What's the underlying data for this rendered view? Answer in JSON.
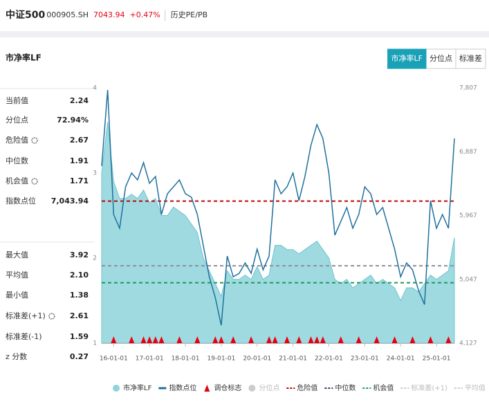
{
  "header": {
    "name": "中证500",
    "code": "000905.SH",
    "price": "7043.94",
    "change": "+0.47%",
    "tab": "历史PE/PB"
  },
  "panel": {
    "title": "市净率LF",
    "buttons": [
      "市净率LF",
      "分位点",
      "标准差"
    ]
  },
  "stats": [
    [
      "当前值",
      "2.24"
    ],
    [
      "分位点",
      "72.94%"
    ],
    [
      "危险值",
      "2.67"
    ],
    [
      "中位数",
      "1.91"
    ],
    [
      "机会值",
      "1.71"
    ],
    [
      "指数点位",
      "7,043.94"
    ],
    [
      "最大值",
      "3.92"
    ],
    [
      "平均值",
      "2.10"
    ],
    [
      "最小值",
      "1.38"
    ],
    [
      "标准差(+1)",
      "2.61"
    ],
    [
      "标准差(-1)",
      "1.59"
    ],
    [
      "z 分数",
      "0.27"
    ]
  ],
  "chart_data": {
    "type": "area-line",
    "categories": [
      null,
      null,
      "16-01-01",
      null,
      null,
      null,
      null,
      null,
      "17-01-01",
      null,
      null,
      null,
      null,
      null,
      "18-01-01",
      null,
      null,
      null,
      null,
      null,
      "19-01-01",
      null,
      null,
      null,
      null,
      null,
      "20-01-01",
      null,
      null,
      null,
      null,
      null,
      "21-01-01",
      null,
      null,
      null,
      null,
      null,
      "22-01-01",
      null,
      null,
      null,
      null,
      null,
      "23-01-01",
      null,
      null,
      null,
      null,
      null,
      "24-01-01",
      null,
      null,
      null,
      null,
      null,
      "25-01-01",
      null,
      null,
      null
    ],
    "series": [
      {
        "name": "市净率LF",
        "color": "#8fd3dc",
        "values": [
          3.0,
          3.6,
          2.9,
          2.7,
          2.7,
          2.75,
          2.7,
          2.8,
          2.65,
          2.7,
          2.5,
          2.5,
          2.6,
          2.55,
          2.5,
          2.4,
          2.3,
          2.0,
          1.85,
          1.7,
          1.55,
          1.85,
          1.75,
          1.75,
          1.8,
          1.75,
          1.9,
          1.75,
          1.8,
          2.15,
          2.15,
          2.1,
          2.1,
          2.05,
          2.1,
          2.15,
          2.2,
          2.1,
          2.0,
          1.75,
          1.7,
          1.75,
          1.65,
          1.7,
          1.75,
          1.8,
          1.7,
          1.75,
          1.7,
          1.65,
          1.5,
          1.65,
          1.65,
          1.6,
          1.7,
          1.8,
          1.75,
          1.8,
          1.85,
          2.24
        ]
      },
      {
        "name": "指数点位",
        "color": "#1f6f9c",
        "axis": "y2",
        "values": [
          6680,
          7777,
          5982,
          5783,
          6381,
          6580,
          6480,
          6730,
          6431,
          6530,
          5982,
          6281,
          6381,
          6480,
          6281,
          6231,
          5982,
          5533,
          5084,
          4785,
          4386,
          5383,
          5084,
          5134,
          5284,
          5134,
          5483,
          5184,
          5383,
          6481,
          6281,
          6381,
          6580,
          6181,
          6530,
          6979,
          7278,
          7079,
          6580,
          5683,
          5882,
          6082,
          5783,
          5982,
          6381,
          6281,
          5982,
          6082,
          5783,
          5483,
          5084,
          5284,
          5184,
          4885,
          4685,
          6181,
          5783,
          5982,
          5783,
          7079
        ]
      },
      {
        "name": "调仓标志",
        "color": "#e60012",
        "values": [
          null,
          null,
          1,
          null,
          null,
          1,
          null,
          1,
          1,
          1,
          1,
          null,
          null,
          1,
          null,
          null,
          1,
          null,
          null,
          1,
          1,
          null,
          1,
          null,
          null,
          1,
          null,
          null,
          1,
          1,
          null,
          1,
          null,
          1,
          null,
          1,
          1,
          1,
          null,
          null,
          1,
          null,
          null,
          1,
          null,
          null,
          1,
          null,
          null,
          1,
          null,
          null,
          1,
          null,
          null,
          1,
          null,
          null,
          1,
          null
        ]
      }
    ],
    "reference_lines": [
      {
        "name": "危险值",
        "value": 2.67,
        "color": "#c00000"
      },
      {
        "name": "中位数",
        "value": 1.91,
        "color": "#8a8f9c"
      },
      {
        "name": "机会值",
        "value": 1.71,
        "color": "#1a9a5a"
      }
    ],
    "inactive_legend": [
      "分位点",
      "标准差(+1)",
      "平均值",
      "标准差(-1)"
    ],
    "ylim": [
      1,
      4
    ],
    "yticks": [
      1,
      2,
      3,
      4
    ],
    "y2lim": [
      4127,
      7807
    ],
    "y2ticks": [
      {
        "value": 4127,
        "label": "4,127"
      },
      {
        "value": 5047,
        "label": "5,047"
      },
      {
        "value": 5967,
        "label": "5,967"
      },
      {
        "value": 6887,
        "label": "6,887"
      },
      {
        "value": 7807,
        "label": "7,807"
      }
    ]
  }
}
